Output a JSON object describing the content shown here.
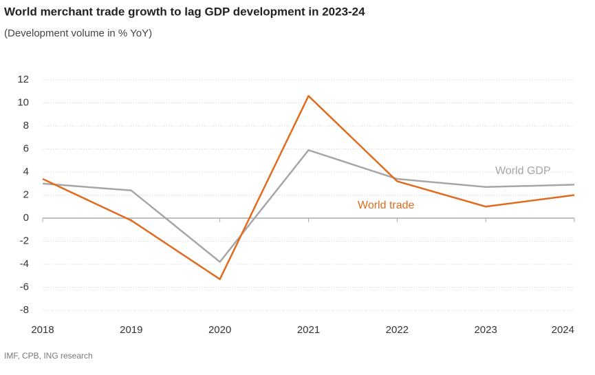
{
  "chart_data": {
    "type": "line",
    "title": "World merchant trade growth to lag GDP development in 2023-24",
    "subtitle": "(Development volume in % YoY)",
    "source": "IMF, CPB, ING research",
    "x": [
      2018,
      2019,
      2020,
      2021,
      2022,
      2023,
      2024
    ],
    "series": [
      {
        "name": "World GDP",
        "color": "#a6a6a6",
        "values": [
          3.0,
          2.4,
          -3.8,
          5.9,
          3.4,
          2.7,
          2.9
        ]
      },
      {
        "name": "World trade",
        "color": "#e06a1e",
        "values": [
          3.4,
          -0.2,
          -5.3,
          10.6,
          3.2,
          1.0,
          2.0
        ]
      }
    ],
    "xlim": [
      2018,
      2024
    ],
    "xticks": [
      2018,
      2019,
      2020,
      2021,
      2022,
      2023,
      2024
    ],
    "ylim": [
      -8,
      12
    ],
    "yticks": [
      -8,
      -6,
      -4,
      -2,
      0,
      2,
      4,
      6,
      8,
      10,
      12
    ],
    "grid": true
  }
}
